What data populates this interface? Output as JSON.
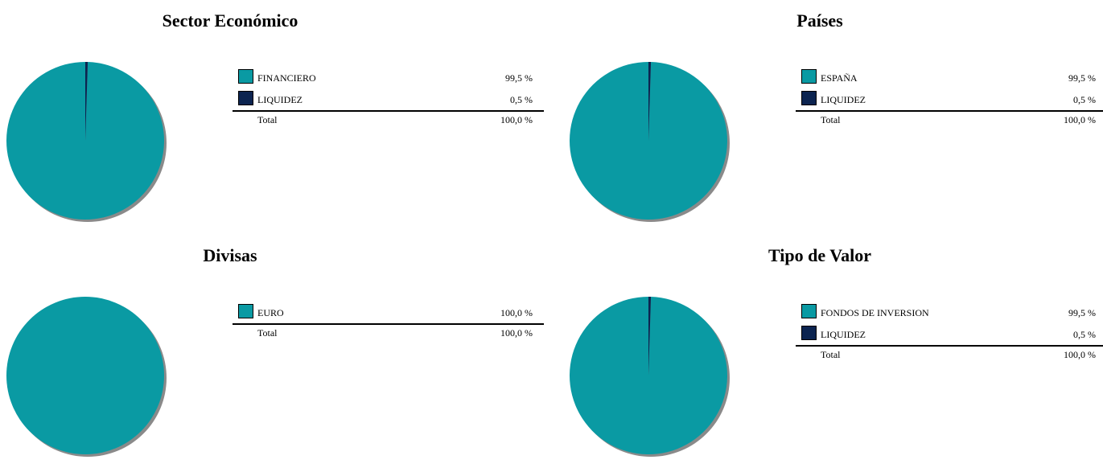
{
  "colors": {
    "teal": "#0a9aa3",
    "navy": "#0c2450",
    "shadow": "#8a8a8a"
  },
  "panels": [
    {
      "title": "Sector Económico",
      "items": [
        {
          "label": "FINANCIERO",
          "value": "99,5  %",
          "pct": 99.5,
          "color": "#0a9aa3"
        },
        {
          "label": "LIQUIDEZ",
          "value": "0,5  %",
          "pct": 0.5,
          "color": "#0c2450"
        }
      ],
      "total_label": "Total",
      "total_value": "100,0  %"
    },
    {
      "title": "Países",
      "items": [
        {
          "label": "ESPAÑA",
          "value": "99,5  %",
          "pct": 99.5,
          "color": "#0a9aa3"
        },
        {
          "label": "LIQUIDEZ",
          "value": "0,5  %",
          "pct": 0.5,
          "color": "#0c2450"
        }
      ],
      "total_label": "Total",
      "total_value": "100,0  %"
    },
    {
      "title": "Divisas",
      "items": [
        {
          "label": "EURO",
          "value": "100,0  %",
          "pct": 100.0,
          "color": "#0a9aa3"
        }
      ],
      "total_label": "Total",
      "total_value": "100,0  %"
    },
    {
      "title": "Tipo de Valor",
      "items": [
        {
          "label": "FONDOS DE INVERSION",
          "value": "99,5  %",
          "pct": 99.5,
          "color": "#0a9aa3"
        },
        {
          "label": "LIQUIDEZ",
          "value": "0,5  %",
          "pct": 0.5,
          "color": "#0c2450"
        }
      ],
      "total_label": "Total",
      "total_value": "100,0  %"
    }
  ],
  "chart_data": [
    {
      "type": "pie",
      "title": "Sector Económico",
      "categories": [
        "FINANCIERO",
        "LIQUIDEZ"
      ],
      "values": [
        99.5,
        0.5
      ],
      "legend": "right"
    },
    {
      "type": "pie",
      "title": "Países",
      "categories": [
        "ESPAÑA",
        "LIQUIDEZ"
      ],
      "values": [
        99.5,
        0.5
      ],
      "legend": "right"
    },
    {
      "type": "pie",
      "title": "Divisas",
      "categories": [
        "EURO"
      ],
      "values": [
        100.0
      ],
      "legend": "right"
    },
    {
      "type": "pie",
      "title": "Tipo de Valor",
      "categories": [
        "FONDOS DE INVERSION",
        "LIQUIDEZ"
      ],
      "values": [
        99.5,
        0.5
      ],
      "legend": "right"
    }
  ]
}
